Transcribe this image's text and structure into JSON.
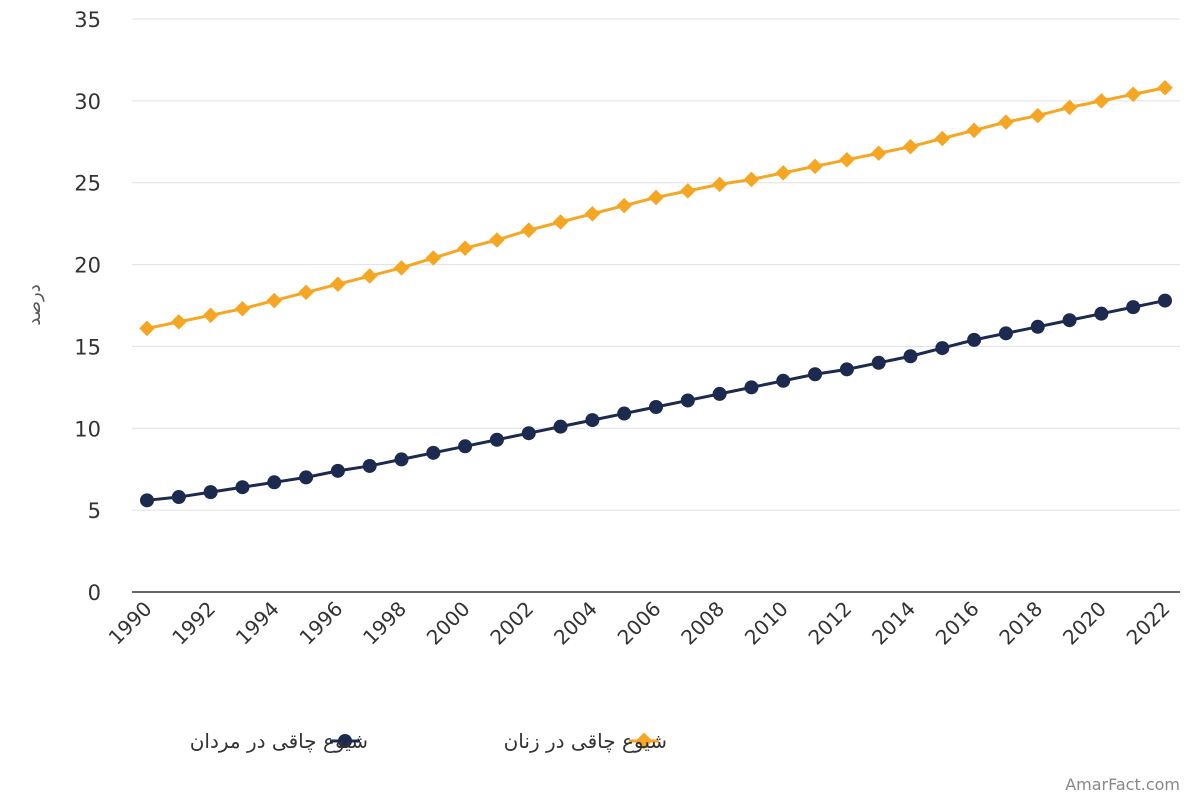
{
  "chart_data": {
    "type": "line",
    "ylabel": "درصد",
    "xlabel": "",
    "ylim": [
      0,
      35
    ],
    "y_ticks": [
      "0",
      "5",
      "10",
      "15",
      "20",
      "25",
      "30",
      "35"
    ],
    "x_tick_labels": [
      "1990",
      "1992",
      "1994",
      "1996",
      "1998",
      "2000",
      "2002",
      "2004",
      "2006",
      "2008",
      "2010",
      "2012",
      "2014",
      "2016",
      "2018",
      "2020",
      "2022"
    ],
    "x": [
      1990,
      1991,
      1992,
      1993,
      1994,
      1995,
      1996,
      1997,
      1998,
      1999,
      2000,
      2001,
      2002,
      2003,
      2004,
      2005,
      2006,
      2007,
      2008,
      2009,
      2010,
      2011,
      2012,
      2013,
      2014,
      2015,
      2016,
      2017,
      2018,
      2019,
      2020,
      2021,
      2022
    ],
    "grid": true,
    "legend_position": "bottom",
    "series": [
      {
        "name": "شیوع چاقی در مردان",
        "color": "#1b2a4e",
        "marker": "circle",
        "values": [
          5.6,
          5.8,
          6.1,
          6.4,
          6.7,
          7.0,
          7.4,
          7.7,
          8.1,
          8.5,
          8.9,
          9.3,
          9.7,
          10.1,
          10.5,
          10.9,
          11.3,
          11.7,
          12.1,
          12.5,
          12.9,
          13.3,
          13.6,
          14.0,
          14.4,
          14.9,
          15.4,
          15.8,
          16.2,
          16.6,
          17.0,
          17.4,
          17.8
        ]
      },
      {
        "name": "شیوع چاقی در زنان",
        "color": "#f5a623",
        "marker": "diamond",
        "values": [
          16.1,
          16.5,
          16.9,
          17.3,
          17.8,
          18.3,
          18.8,
          19.3,
          19.8,
          20.4,
          21.0,
          21.5,
          22.1,
          22.6,
          23.1,
          23.6,
          24.1,
          24.5,
          24.9,
          25.2,
          25.6,
          26.0,
          26.4,
          26.8,
          27.2,
          27.7,
          28.2,
          28.7,
          29.1,
          29.6,
          30.0,
          30.4,
          30.8
        ]
      }
    ]
  },
  "watermark": "AmarFact.com"
}
